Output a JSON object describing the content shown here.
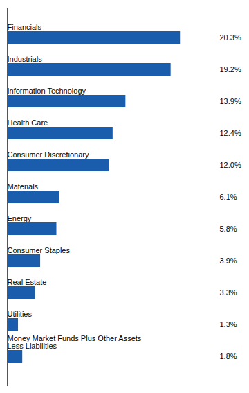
{
  "chart_data": {
    "type": "bar",
    "orientation": "horizontal",
    "categories": [
      "Money Market Funds Plus Other Assets\nLess Liabilities",
      "Utilities",
      "Real Estate",
      "Consumer Staples",
      "Energy",
      "Materials",
      "Consumer Discretionary",
      "Health Care",
      "Information Technology",
      "Industrials",
      "Financials"
    ],
    "values": [
      1.8,
      1.3,
      3.3,
      3.9,
      5.8,
      6.1,
      12.0,
      12.4,
      13.9,
      19.2,
      20.3
    ],
    "value_labels": [
      "1.8%",
      "1.3%",
      "3.3%",
      "3.9%",
      "5.8%",
      "6.1%",
      "12.0%",
      "12.4%",
      "13.9%",
      "19.2%",
      "20.3%"
    ],
    "color": "#1B5DAD",
    "xlim": [
      0,
      24.5
    ],
    "data_labels": true,
    "tick_labels": false,
    "grid": false
  }
}
